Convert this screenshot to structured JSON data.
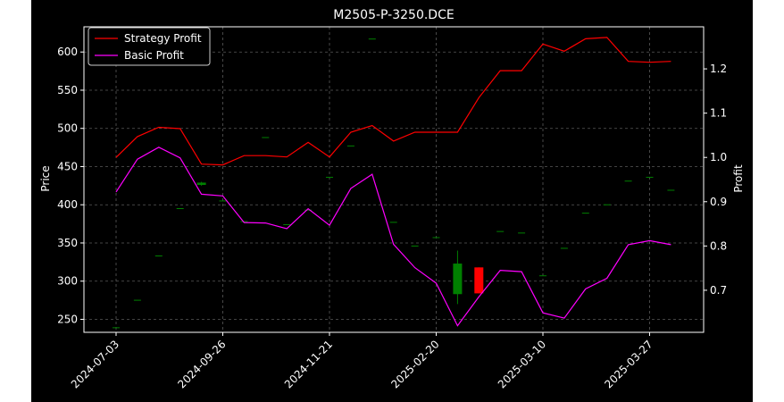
{
  "chart_data": {
    "type": "line",
    "title": "M2505-P-3250.DCE",
    "ylabel_left": "Price",
    "ylabel_right": "Profit",
    "grid": true,
    "legend_position": "top-left",
    "background_color": "#000000",
    "foreground_color": "#ffffff",
    "x_tick_labels": [
      "2024-07-03",
      "2024-09-26",
      "2024-11-21",
      "2025-02-20",
      "2025-03-10",
      "2025-03-27"
    ],
    "y_left": {
      "lim": [
        233,
        633
      ],
      "ticks": [
        250,
        300,
        350,
        400,
        450,
        500,
        550,
        600
      ]
    },
    "y_right": {
      "lim": [
        0.605,
        1.295
      ],
      "ticks": [
        0.7,
        0.8,
        0.9,
        1.0,
        1.1,
        1.2
      ]
    },
    "series": [
      {
        "name": "Strategy Profit",
        "axis": "right",
        "color": "#ff0000",
        "values": [
          1.0,
          1.047,
          1.068,
          1.065,
          0.985,
          0.983,
          1.004,
          1.004,
          1.001,
          1.034,
          1.001,
          1.057,
          1.072,
          1.037,
          1.057,
          1.057,
          1.057,
          1.135,
          1.196,
          1.196,
          1.256,
          1.24,
          1.268,
          1.271,
          1.217,
          1.215,
          1.217
        ]
      },
      {
        "name": "Basic Profit",
        "axis": "right",
        "color": "#ff00ff",
        "values": [
          0.922,
          0.996,
          1.023,
          0.999,
          0.917,
          0.913,
          0.853,
          0.852,
          0.839,
          0.884,
          0.847,
          0.93,
          0.962,
          0.804,
          0.751,
          0.716,
          0.62,
          0.685,
          0.745,
          0.742,
          0.649,
          0.637,
          0.703,
          0.727,
          0.803,
          0.812,
          0.803
        ]
      }
    ],
    "price_candles": [
      {
        "i": 0,
        "o": 239,
        "c": 239,
        "h": 239,
        "l": 239
      },
      {
        "i": 1,
        "o": 275,
        "c": 275,
        "h": 275,
        "l": 275
      },
      {
        "i": 2,
        "o": 333,
        "c": 333,
        "h": 333,
        "l": 333
      },
      {
        "i": 3,
        "o": 395,
        "c": 395,
        "h": 395,
        "l": 395
      },
      {
        "i": 4,
        "o": 426,
        "c": 429,
        "h": 430,
        "l": 425
      },
      {
        "i": 5,
        "o": 405,
        "c": 405,
        "h": 405,
        "l": 405
      },
      {
        "i": 6,
        "o": 378,
        "c": 378,
        "h": 378,
        "l": 378
      },
      {
        "i": 7,
        "o": 488,
        "c": 488,
        "h": 488,
        "l": 488
      },
      {
        "i": 8,
        "o": 374,
        "c": 374,
        "h": 374,
        "l": 374
      },
      {
        "i": 9,
        "o": 393,
        "c": 393,
        "h": 393,
        "l": 393
      },
      {
        "i": 10,
        "o": 436,
        "c": 436,
        "h": 436,
        "l": 436
      },
      {
        "i": 11,
        "o": 477,
        "c": 477,
        "h": 477,
        "l": 477
      },
      {
        "i": 12,
        "o": 617,
        "c": 617,
        "h": 617,
        "l": 617
      },
      {
        "i": 13,
        "o": 377,
        "c": 377,
        "h": 377,
        "l": 377
      },
      {
        "i": 14,
        "o": 346,
        "c": 346,
        "h": 346,
        "l": 346
      },
      {
        "i": 15,
        "o": 357,
        "c": 357,
        "h": 357,
        "l": 357
      },
      {
        "i": 16,
        "o": 283,
        "c": 323,
        "h": 340,
        "l": 270
      },
      {
        "i": 17,
        "o": 318,
        "c": 284,
        "h": 318,
        "l": 284
      },
      {
        "i": 18,
        "o": 365,
        "c": 365,
        "h": 365,
        "l": 365
      },
      {
        "i": 19,
        "o": 363,
        "c": 363,
        "h": 363,
        "l": 363
      },
      {
        "i": 20,
        "o": 307,
        "c": 307,
        "h": 307,
        "l": 307
      },
      {
        "i": 21,
        "o": 343,
        "c": 343,
        "h": 343,
        "l": 343
      },
      {
        "i": 22,
        "o": 389,
        "c": 389,
        "h": 389,
        "l": 389
      },
      {
        "i": 23,
        "o": 400,
        "c": 400,
        "h": 400,
        "l": 400
      },
      {
        "i": 24,
        "o": 431,
        "c": 431,
        "h": 431,
        "l": 431
      },
      {
        "i": 25,
        "o": 436,
        "c": 436,
        "h": 436,
        "l": 436
      },
      {
        "i": 26,
        "o": 419,
        "c": 419,
        "h": 419,
        "l": 419
      }
    ],
    "up_color": "#008000",
    "down_color": "#ff0000"
  }
}
